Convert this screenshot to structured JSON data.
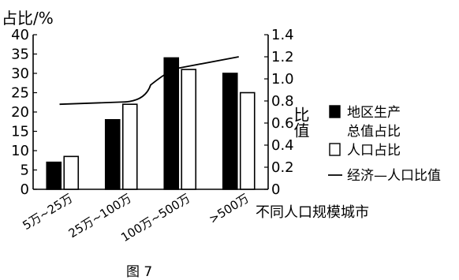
{
  "chart_data": {
    "type": "bar",
    "categories": [
      "5万~25万",
      "25万~100万",
      "100万~500万",
      ">500万"
    ],
    "series": [
      {
        "name": "地区生产总值占比",
        "values": [
          7,
          18,
          34,
          30
        ],
        "axis": "left",
        "color": "#000000"
      },
      {
        "name": "人口占比",
        "values": [
          8.5,
          22,
          31,
          25
        ],
        "axis": "left",
        "color": "#ffffff"
      },
      {
        "name": "经济—人口比值",
        "type": "line",
        "values": [
          0.77,
          0.79,
          1.1,
          1.2
        ],
        "axis": "right",
        "color": "#000000"
      }
    ],
    "ylabel": "占比/%",
    "ylim": [
      0,
      40
    ],
    "yticks": [
      0,
      5,
      10,
      15,
      20,
      25,
      30,
      35,
      40
    ],
    "y2label": "比值",
    "y2lim": [
      0,
      1.4
    ],
    "y2ticks": [
      "0",
      "0.2",
      "0.4",
      "0.6",
      "0.8",
      "1.0",
      "1.2",
      "1.4"
    ],
    "xlabel": "不同人口规模城市",
    "caption": "图 7",
    "legend_position": "right",
    "grid": false
  }
}
